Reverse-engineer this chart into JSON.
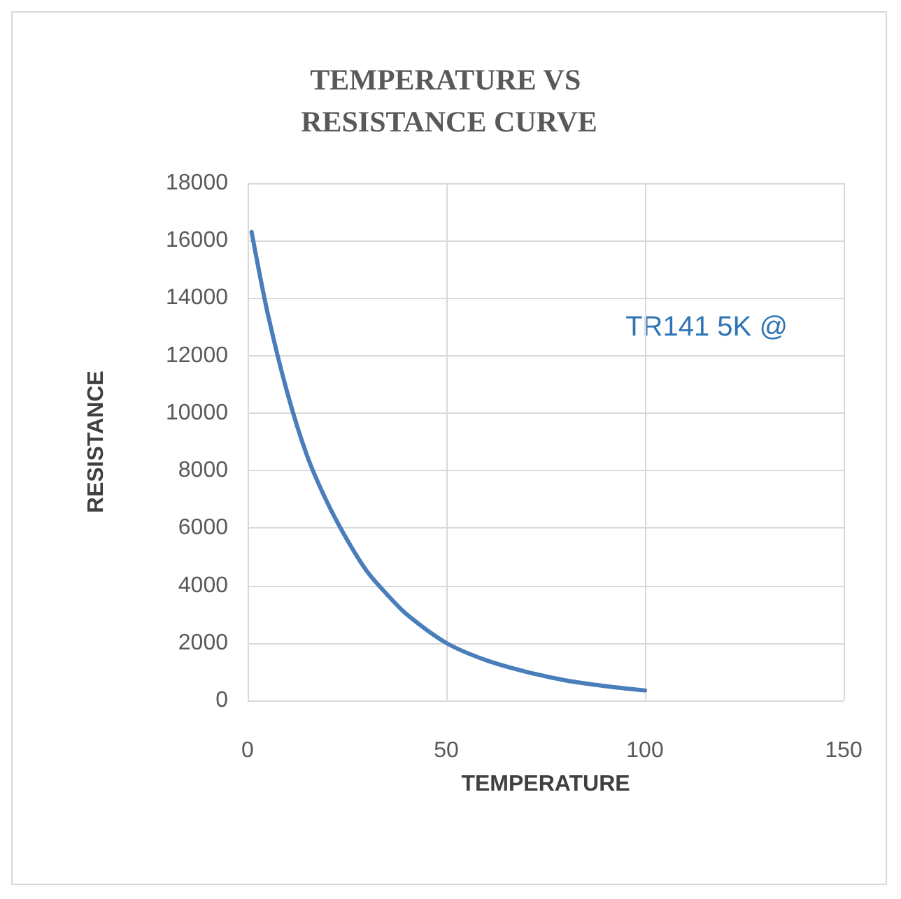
{
  "chart_data": {
    "type": "line",
    "title": "TEMPERATURE VS RESISTANCE CURVE",
    "xlabel": "TEMPERATURE",
    "ylabel": "RESISTANCE",
    "annotations": [
      "TR141 5K @"
    ],
    "x": [
      1,
      5,
      10,
      15,
      20,
      25,
      30,
      35,
      40,
      50,
      60,
      70,
      80,
      90,
      100
    ],
    "series": [
      {
        "color": "#4a7ebb",
        "values": [
          16300,
          13500,
          10700,
          8500,
          6900,
          5600,
          4500,
          3700,
          3000,
          2000,
          1400,
          1000,
          700,
          500,
          350
        ]
      }
    ],
    "xlim": [
      0,
      150
    ],
    "xticks": [
      0,
      50,
      100,
      150
    ],
    "ylim": [
      0,
      18000
    ],
    "yticks": [
      0,
      2000,
      4000,
      6000,
      8000,
      10000,
      12000,
      14000,
      16000,
      18000
    ],
    "grid": true,
    "marker": "none",
    "line_style": "solid"
  }
}
